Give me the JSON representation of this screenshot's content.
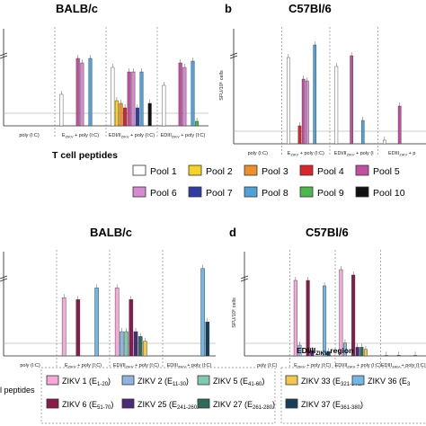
{
  "figure": {
    "panel_labels": [
      "b",
      "d"
    ],
    "legend_top_title": "T cell peptides",
    "legend_bottom_title": "l peptides",
    "legend_top": [
      {
        "label": "Pool 1",
        "color": "#ffffff"
      },
      {
        "label": "Pool 2",
        "color": "#f5d327"
      },
      {
        "label": "Pool 3",
        "color": "#ef8f2a"
      },
      {
        "label": "Pool 4",
        "color": "#d9262a"
      },
      {
        "label": "Pool 5",
        "color": "#c24f9f"
      },
      {
        "label": "Pool 6",
        "color": "#d68ad1"
      },
      {
        "label": "Pool 7",
        "color": "#2f3ca3"
      },
      {
        "label": "Pool 8",
        "color": "#4fa2d8"
      },
      {
        "label": "Pool 9",
        "color": "#4cb84c"
      },
      {
        "label": "Pool 10",
        "color": "#111111"
      }
    ],
    "legend_bottom_left": [
      {
        "label": "ZIKV 1 (E",
        "sub": "1-20",
        "close": ")",
        "color": "#f7a8d6"
      },
      {
        "label": "ZIKV 2 (E",
        "sub": "11-30",
        "close": ")",
        "color": "#8fb4e0"
      },
      {
        "label": "ZIKV 5 (E",
        "sub": "41-60",
        "close": ")",
        "color": "#7fc9b1"
      },
      {
        "label": "ZIKV 6 (E",
        "sub": "51-70",
        "close": ")",
        "color": "#8a1a4a"
      },
      {
        "label": "ZIKV 25 (E",
        "sub": "241-260",
        "close": ")",
        "color": "#4b2a7a"
      },
      {
        "label": "ZIKV 27 (E",
        "sub": "261-280",
        "close": ")",
        "color": "#2e6b5a"
      }
    ],
    "legend_bottom_right": [
      {
        "label": "ZIKV 33 (E",
        "sub": "321-340",
        "close": ")",
        "color": "#f3c84a"
      },
      {
        "label": "ZIKV 36 (E",
        "sub": "3",
        "close": "",
        "color": "#72b7e6"
      },
      {
        "label": "ZIKV 37 (E",
        "sub": "361-380",
        "close": ")",
        "color": "#163e5c"
      }
    ],
    "region_label": "EDI/II",
    "region_sub": "ZIKV",
    "region_suffix": " region"
  },
  "chart_data": [
    {
      "type": "bar",
      "title": "BALB/c",
      "ylabel": "",
      "categories": [
        "poly (I:C)",
        "E_ZIKV + poly (I:C)",
        "EDI/II_ZIKV + poly (I:C)",
        "EDIII_ZIKV + poly (I:C)"
      ],
      "tick_labels": [
        {
          "main": "poly (I:C)",
          "sub": "",
          "rest": ""
        },
        {
          "main": "E",
          "sub": "ZIKV",
          "rest": " + poly (I:C)"
        },
        {
          "main": "EDI/II",
          "sub": "ZIKV",
          "rest": " + poly (I:C)"
        },
        {
          "main": "EDIII",
          "sub": "ZIKV",
          "rest": " + poly (I:C)"
        }
      ],
      "series_note": "Pools 1-10",
      "values": [
        [
          0,
          0,
          0,
          0,
          0,
          0,
          0,
          0,
          0,
          0
        ],
        [
          35,
          0,
          0,
          0,
          75,
          70,
          0,
          75,
          0,
          0
        ],
        [
          65,
          28,
          25,
          20,
          60,
          60,
          20,
          60,
          0,
          25
        ],
        [
          45,
          0,
          0,
          0,
          70,
          65,
          0,
          72,
          5,
          0
        ]
      ],
      "ylim": [
        0,
        100
      ]
    },
    {
      "type": "bar",
      "title": "C57Bl/6",
      "ylabel": "SFU/10⁶ cells",
      "categories": [
        "poly (I:C)",
        "E_ZIKV + poly (I:C)",
        "EDI/II_ZIKV + poly (I:C)",
        "EDIII_ZIKV + poly (I:C)"
      ],
      "tick_labels": [
        {
          "main": "poly (I:C)",
          "sub": "",
          "rest": ""
        },
        {
          "main": "E",
          "sub": "ZIKV",
          "rest": " + poly (I:C)"
        },
        {
          "main": "EDI/II",
          "sub": "ZIKV",
          "rest": " + poly (I"
        },
        {
          "main": "EDIII",
          "sub": "ZIKV",
          "rest": " + p"
        }
      ],
      "series_note": "Pools 1-10",
      "values": [
        [
          0,
          0,
          0,
          0,
          0,
          0,
          0,
          0,
          0,
          0
        ],
        [
          480,
          0,
          0,
          100,
          360,
          350,
          0,
          550,
          0,
          0
        ],
        [
          430,
          0,
          0,
          0,
          490,
          0,
          0,
          130,
          0,
          0
        ],
        [
          20,
          0,
          0,
          0,
          210,
          0,
          0,
          0,
          0,
          0
        ]
      ],
      "ylim": [
        0,
        600
      ]
    },
    {
      "type": "bar",
      "title": "BALB/c",
      "ylabel": "",
      "categories": [
        "poly (I:C)",
        "E_ZIKV + poly (I:C)",
        "EDI/II_ZIKV + poly (I:C)",
        "EDIII_ZIKV + poly (I:C)"
      ],
      "tick_labels": [
        {
          "main": "poly (I:C)",
          "sub": "",
          "rest": ""
        },
        {
          "main": "E",
          "sub": "ZIKV",
          "rest": " + poly (I:C)"
        },
        {
          "main": "EDI/II",
          "sub": "ZIKV",
          "rest": " + poly (I:C)"
        },
        {
          "main": "EDIII",
          "sub": "ZIKV",
          "rest": " + poly (I:C)"
        }
      ],
      "series_note": "ZIKV peptides",
      "values": [
        [
          0,
          0,
          0,
          0,
          0,
          0,
          0,
          0,
          0
        ],
        [
          60,
          0,
          0,
          58,
          0,
          0,
          0,
          70,
          0
        ],
        [
          70,
          25,
          25,
          58,
          25,
          20,
          15,
          0,
          0
        ],
        [
          0,
          0,
          0,
          0,
          0,
          0,
          0,
          90,
          35
        ]
      ],
      "ylim": [
        0,
        100
      ]
    },
    {
      "type": "bar",
      "title": "C57Bl/6",
      "ylabel": "SFU/10⁶ cells",
      "categories": [
        "poly (I:C)",
        "E_ZIKV + poly (I:C)",
        "EDI/II_ZIKV + poly (I:C)",
        "EDIII_ZIKV + poly (I:C)"
      ],
      "tick_labels": [
        {
          "main": "poly (I:C)",
          "sub": "",
          "rest": ""
        },
        {
          "main": "E",
          "sub": "ZIKV",
          "rest": " + poly (I:C)"
        },
        {
          "main": "EDI/II",
          "sub": "ZIKV",
          "rest": " + poly (I:C)"
        },
        {
          "main": "EDIII",
          "sub": "ZIKV",
          "rest": " + poly (I:C)"
        }
      ],
      "series_note": "ZIKV peptides",
      "values": [
        [
          0,
          0,
          0,
          0,
          0,
          0,
          0,
          0,
          0
        ],
        [
          700,
          100,
          0,
          700,
          50,
          0,
          0,
          650,
          40
        ],
        [
          800,
          120,
          0,
          750,
          80,
          80,
          60,
          0,
          0
        ],
        [
          5,
          0,
          0,
          5,
          0,
          0,
          0,
          5,
          0
        ]
      ],
      "ylim": [
        0,
        900
      ]
    }
  ]
}
